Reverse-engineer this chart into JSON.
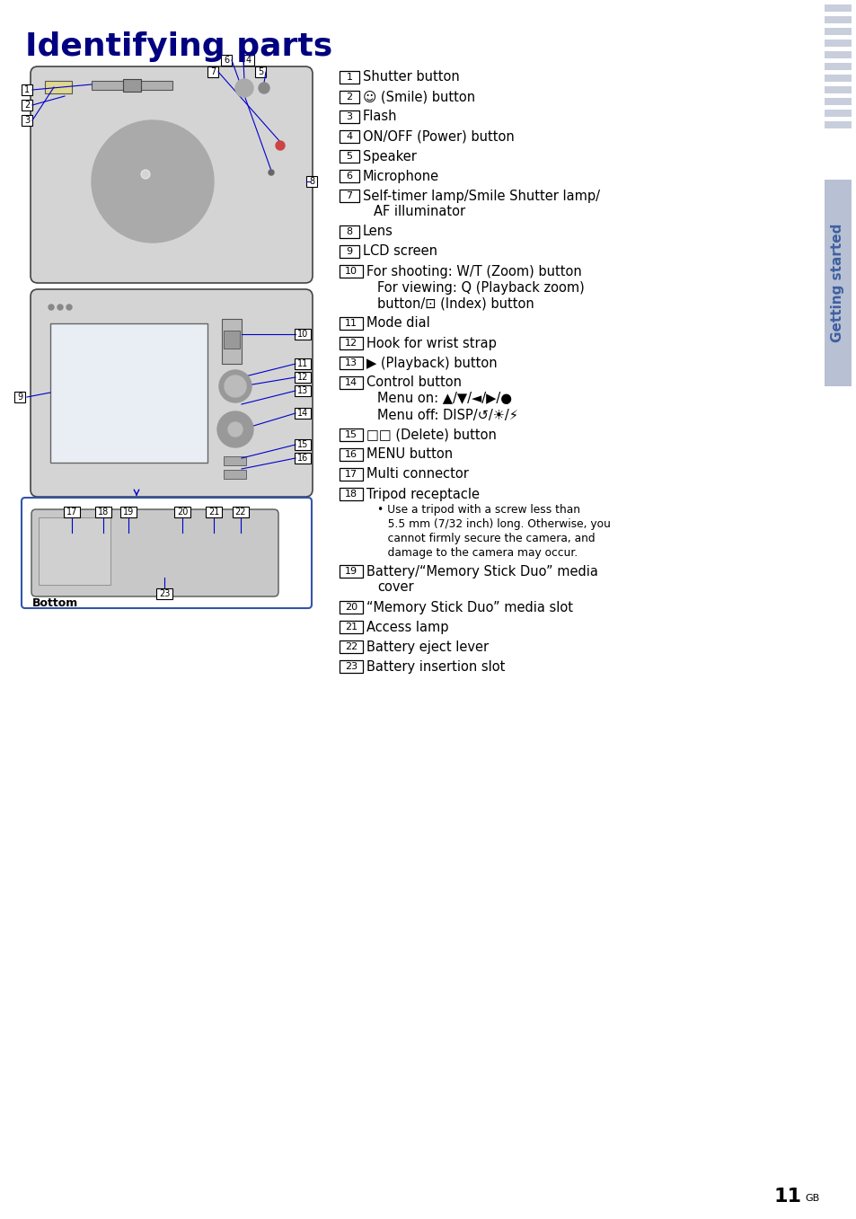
{
  "title": "Identifying parts",
  "title_color": "#000080",
  "title_fontsize": 26,
  "bg_color": "#ffffff",
  "sidebar_text": "Getting started",
  "sidebar_text_color": "#4060a0",
  "page_number": "11",
  "page_suffix": "GB",
  "items": [
    {
      "num": "1",
      "lines": [
        "Shutter button"
      ],
      "note": null
    },
    {
      "num": "2",
      "lines": [
        "☉ (Smile) button"
      ],
      "note": null
    },
    {
      "num": "3",
      "lines": [
        "Flash"
      ],
      "note": null
    },
    {
      "num": "4",
      "lines": [
        "ON/OFF (Power) button"
      ],
      "note": null
    },
    {
      "num": "5",
      "lines": [
        "Speaker"
      ],
      "note": null
    },
    {
      "num": "6",
      "lines": [
        "Microphone"
      ],
      "note": null
    },
    {
      "num": "7",
      "lines": [
        "Self-timer lamp/Smile Shutter lamp/",
        "    AF illuminator"
      ],
      "note": null
    },
    {
      "num": "8",
      "lines": [
        "Lens"
      ],
      "note": null
    },
    {
      "num": "9",
      "lines": [
        "LCD screen"
      ],
      "note": null
    },
    {
      "num": "10",
      "lines": [
        "For shooting: W/T (Zoom) button",
        "    For viewing: Q (Playback zoom)",
        "    button/⊡ (Index) button"
      ],
      "note": null
    },
    {
      "num": "11",
      "lines": [
        "Mode dial"
      ],
      "note": null
    },
    {
      "num": "12",
      "lines": [
        "Hook for wrist strap"
      ],
      "note": null
    },
    {
      "num": "13",
      "lines": [
        "▶ (Playback) button"
      ],
      "note": null
    },
    {
      "num": "14",
      "lines": [
        "Control button",
        "    Menu on: ▲/▼/◄/▶/●",
        "    Menu off: DISP/↺/☀/⚡"
      ],
      "note": null
    },
    {
      "num": "15",
      "lines": [
        "□ (Delete) button"
      ],
      "note": null
    },
    {
      "num": "16",
      "lines": [
        "MENU button"
      ],
      "note": null
    },
    {
      "num": "17",
      "lines": [
        "Multi connector"
      ],
      "note": null
    },
    {
      "num": "18",
      "lines": [
        "Tripod receptacle"
      ],
      "note": "Use a tripod with a screw less than\n5.5 mm (7/32 inch) long. Otherwise, you\ncannot firmly secure the camera, and\ndamage to the camera may occur."
    },
    {
      "num": "19",
      "lines": [
        "Battery/“Memory Stick Duo” media",
        "    cover"
      ],
      "note": null
    },
    {
      "num": "20",
      "lines": [
        "“Memory Stick Duo” media slot"
      ],
      "note": null
    },
    {
      "num": "21",
      "lines": [
        "Access lamp"
      ],
      "note": null
    },
    {
      "num": "22",
      "lines": [
        "Battery eject lever"
      ],
      "note": null
    },
    {
      "num": "23",
      "lines": [
        "Battery insertion slot"
      ],
      "note": null
    }
  ],
  "stripe_colors": [
    "#c8cedc",
    "#c8cedc",
    "#c8cedc",
    "#c8cedc",
    "#c8cedc",
    "#c8cedc",
    "#c8cedc",
    "#c8cedc",
    "#c8cedc",
    "#c8cedc",
    "#c8cedc"
  ],
  "sidebar_bg": "#b8c0d4"
}
